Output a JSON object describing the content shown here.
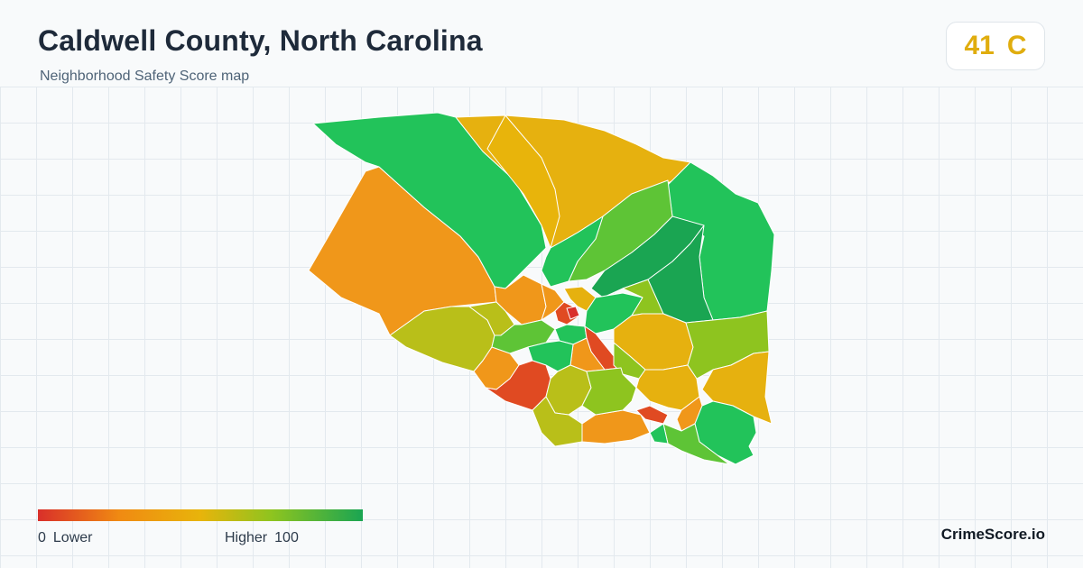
{
  "header": {
    "title": "Caldwell County, North Carolina",
    "subtitle": "Neighborhood Safety Score map"
  },
  "score_card": {
    "score": "41",
    "grade": "C",
    "color": "#e0ad0e"
  },
  "legend": {
    "min_value": "0",
    "min_label": "Lower",
    "max_label": "Higher",
    "max_value": "100",
    "colors": [
      "#d92f2a",
      "#f08a12",
      "#e8b40b",
      "#8ec41f",
      "#1aa552"
    ]
  },
  "brand": {
    "name": "CrimeScore.io"
  },
  "map": {
    "region": "Caldwell County, North Carolina",
    "neighborhood_colors": {
      "low": "#e04a22",
      "below_average": "#f0971a",
      "average": "#e6b10f",
      "above_average": "#b9bf19",
      "good": "#5ec436",
      "high": "#22c35a",
      "highest": "#1aa552"
    }
  }
}
